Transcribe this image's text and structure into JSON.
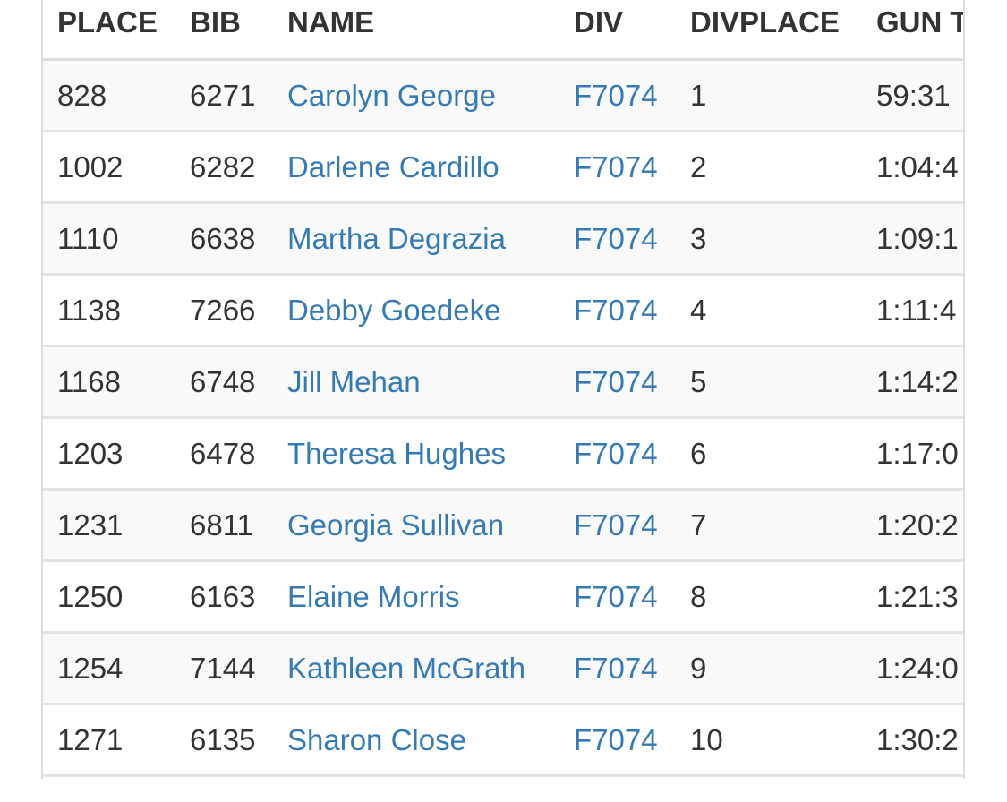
{
  "table": {
    "header": [
      "PLACE",
      "BIB",
      "NAME",
      "DIV",
      "DIVPLACE",
      "GUN T"
    ],
    "rows": [
      [
        "828",
        "6271",
        "Carolyn George",
        "F7074",
        "1",
        "59:31"
      ],
      [
        "1002",
        "6282",
        "Darlene Cardillo",
        "F7074",
        "2",
        "1:04:4"
      ],
      [
        "1110",
        "6638",
        "Martha Degrazia",
        "F7074",
        "3",
        "1:09:1"
      ],
      [
        "1138",
        "7266",
        "Debby Goedeke",
        "F7074",
        "4",
        "1:11:4"
      ],
      [
        "1168",
        "6748",
        "Jill Mehan",
        "F7074",
        "5",
        "1:14:2"
      ],
      [
        "1203",
        "6478",
        "Theresa Hughes",
        "F7074",
        "6",
        "1:17:0"
      ],
      [
        "1231",
        "6811",
        "Georgia Sullivan",
        "F7074",
        "7",
        "1:20:2"
      ],
      [
        "1250",
        "6163",
        "Elaine Morris",
        "F7074",
        "8",
        "1:21:3"
      ],
      [
        "1254",
        "7144",
        "Kathleen McGrath",
        "F7074",
        "9",
        "1:24:0"
      ],
      [
        "1271",
        "6135",
        "Sharon Close",
        "F7074",
        "10",
        "1:30:2"
      ]
    ]
  }
}
